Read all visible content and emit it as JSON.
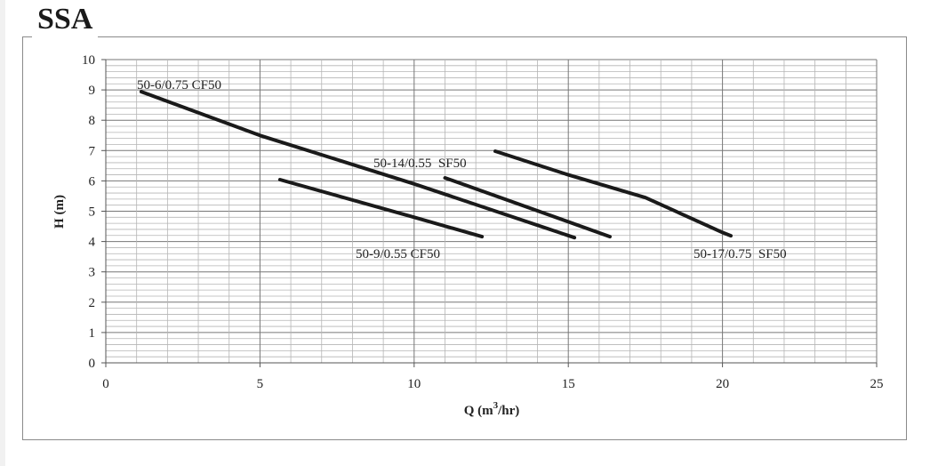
{
  "chart_data": {
    "type": "line",
    "title": "SSA",
    "xlabel": "Q (m³/hr)",
    "xlabel_base": "Q (m",
    "xlabel_sup": "3",
    "xlabel_tail": "/hr)",
    "ylabel": "H (m)",
    "xlim": [
      0,
      25
    ],
    "ylim": [
      0,
      10
    ],
    "xticks": [
      0,
      5,
      10,
      15,
      20,
      25
    ],
    "yticks": [
      0,
      1,
      2,
      3,
      4,
      5,
      6,
      7,
      8,
      9,
      10
    ],
    "grid": true,
    "line_color": "#1a1a1a",
    "series": [
      {
        "name": "50-6/0.75 CF50",
        "x": [
          1.15,
          5,
          10,
          15.2
        ],
        "y": [
          8.94,
          7.5,
          5.9,
          4.13
        ]
      },
      {
        "name": "50-9/0.55 CF50",
        "x": [
          5.65,
          10,
          12.2
        ],
        "y": [
          6.04,
          4.8,
          4.16
        ]
      },
      {
        "name": "50-14/0.55  SF50",
        "x": [
          11.0,
          16.35
        ],
        "y": [
          6.1,
          4.16
        ]
      },
      {
        "name": "50-17/0.75  SF50",
        "x": [
          12.63,
          15,
          17.5,
          20.0,
          20.27
        ],
        "y": [
          6.98,
          6.2,
          5.45,
          4.3,
          4.19
        ]
      }
    ]
  }
}
